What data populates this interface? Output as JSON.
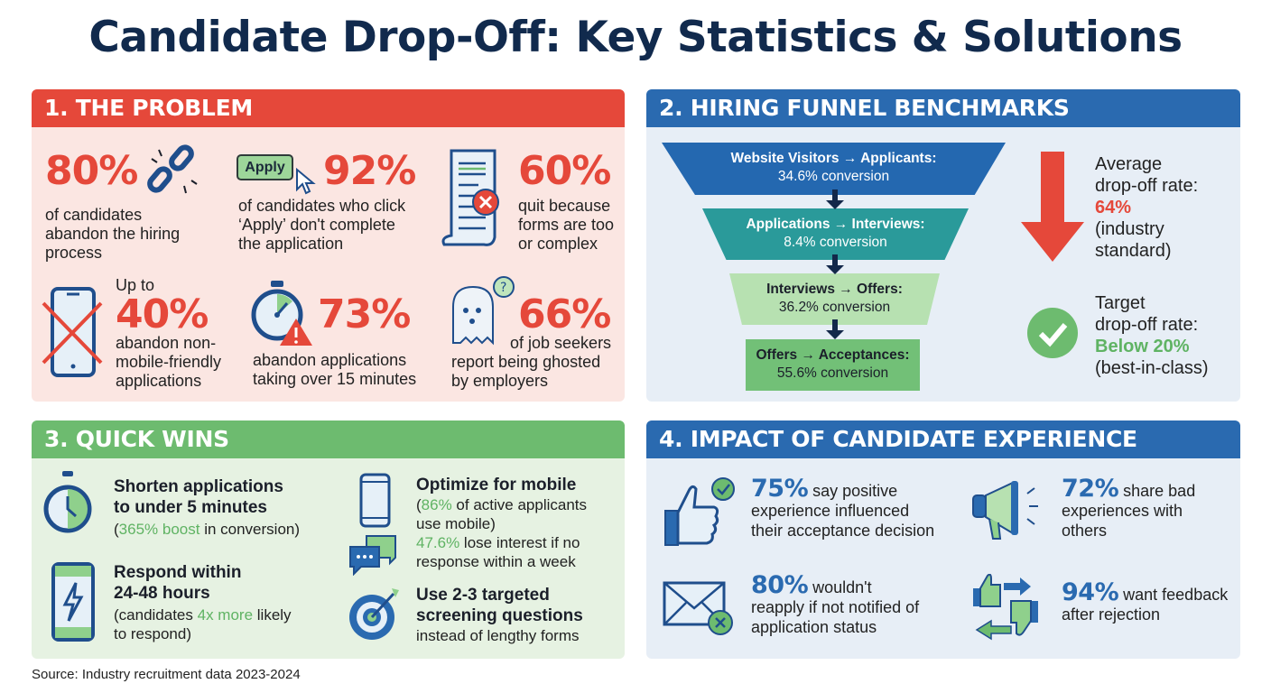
{
  "title": "Candidate Drop-Off: Key Statistics & Solutions",
  "colors": {
    "navy": "#112a4d",
    "red": "#e5483a",
    "blue": "#2a6ab0",
    "green": "#6dbb6f",
    "teal": "#2a9a9a"
  },
  "problem": {
    "header": "1. THE PROBLEM",
    "stats": [
      {
        "value": "80%",
        "text": [
          "of candidates",
          "abandon the hiring",
          "process"
        ],
        "icon": "broken-chain-icon"
      },
      {
        "value": "92%",
        "button": "Apply",
        "text": [
          "of candidates who click",
          "‘Apply’ don't complete",
          "the application"
        ],
        "icon": "apply-button-cursor-icon"
      },
      {
        "value": "60%",
        "text": [
          "quit because",
          "forms are too",
          "or complex"
        ],
        "icon": "form-error-icon"
      },
      {
        "prefix": "Up to",
        "value": "40%",
        "text": [
          "abandon non-",
          "mobile-friendly",
          "applications"
        ],
        "icon": "crossed-phone-icon"
      },
      {
        "value": "73%",
        "text": [
          "abandon applications",
          "taking over 15 minutes"
        ],
        "icon": "stopwatch-warning-icon"
      },
      {
        "value": "66%",
        "text": [
          "of job seekers",
          "report being ghosted",
          "by employers"
        ],
        "icon": "ghost-icon"
      }
    ]
  },
  "funnel": {
    "header": "2. HIRING FUNNEL BENCHMARKS",
    "stages": [
      {
        "label": "Website Visitors → Applicants:",
        "conversion": "34.6% conversion"
      },
      {
        "label": "Applications → Interviews:",
        "conversion": "8.4% conversion"
      },
      {
        "label": "Interviews → Offers:",
        "conversion": "36.2% conversion"
      },
      {
        "label": "Offers → Acceptances:",
        "conversion": "55.6% conversion"
      }
    ],
    "average": {
      "line1": "Average",
      "line2": "drop-off rate:",
      "value": "64%",
      "line3": "(industry",
      "line4": "standard)"
    },
    "target": {
      "line1": "Target",
      "line2": "drop-off rate:",
      "value": "Below 20%",
      "line3": "(best-in-class)"
    }
  },
  "quick_wins": {
    "header": "3. QUICK WINS",
    "items": [
      {
        "title1": "Shorten applications",
        "title2": "to under 5 minutes",
        "pre": "(",
        "hl": "365% boost",
        "post": " in conversion)"
      },
      {
        "title1": "Respond within",
        "title2": "24-48 hours",
        "pre": "(candidates ",
        "hl": "4x more",
        "post": " likely",
        "line2": "to respond)"
      },
      {
        "title1": "Optimize for mobile",
        "pre": "(",
        "hl": "86%",
        "post": " of active applicants",
        "line2": "use mobile)",
        "hl2": "47.6%",
        "post2": " lose interest if no",
        "line3": "response within a week"
      },
      {
        "title1": "Use 2-3 targeted",
        "title2": "screening questions",
        "line2": "instead of lengthy forms"
      }
    ]
  },
  "impact": {
    "header": "4. IMPACT OF CANDIDATE EXPERIENCE",
    "items": [
      {
        "value": "75%",
        "first": " say positive",
        "lines": [
          "experience influenced",
          "their acceptance decision"
        ]
      },
      {
        "value": "72%",
        "first": " share bad",
        "lines": [
          "experiences with",
          "others"
        ]
      },
      {
        "value": "80%",
        "first": " wouldn't",
        "lines": [
          "reapply if not notified of",
          "application status"
        ]
      },
      {
        "value": "94%",
        "first": " want feedback",
        "lines": [
          "after rejection"
        ]
      }
    ]
  },
  "source": "Source: Industry recruitment data 2023-2024"
}
